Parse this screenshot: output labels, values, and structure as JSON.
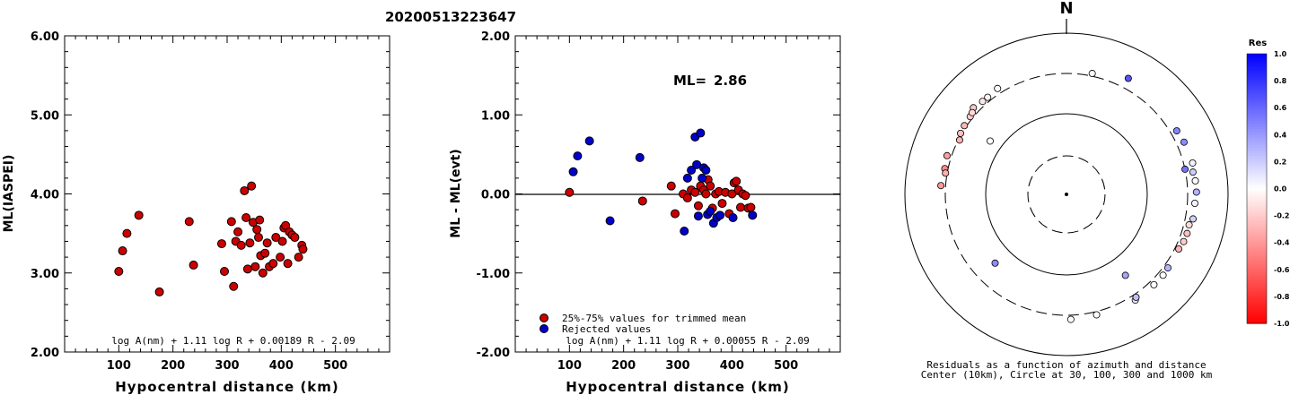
{
  "title": "20200513223647",
  "chart_data": [
    {
      "type": "scatter",
      "id": "ml-vs-distance",
      "xlabel": "Hypocentral distance (km)",
      "ylabel": "ML(IASPEI)",
      "xlim": [
        0,
        600
      ],
      "ylim": [
        2.0,
        6.0
      ],
      "xticks": [
        100,
        200,
        300,
        400,
        500
      ],
      "yticks": [
        "2.00",
        "3.00",
        "4.00",
        "5.00",
        "6.00"
      ],
      "formula": "log A(nm) + 1.11 log R + 0.00189 R - 2.09",
      "point_color": "#cc0000",
      "points": [
        [
          100,
          3.02
        ],
        [
          107,
          3.28
        ],
        [
          115,
          3.5
        ],
        [
          137,
          3.73
        ],
        [
          175,
          2.76
        ],
        [
          230,
          3.65
        ],
        [
          238,
          3.1
        ],
        [
          290,
          3.37
        ],
        [
          295,
          3.02
        ],
        [
          308,
          3.65
        ],
        [
          312,
          2.83
        ],
        [
          316,
          3.4
        ],
        [
          320,
          3.52
        ],
        [
          326,
          3.35
        ],
        [
          332,
          4.04
        ],
        [
          335,
          3.7
        ],
        [
          338,
          3.05
        ],
        [
          342,
          3.38
        ],
        [
          345,
          4.1
        ],
        [
          348,
          3.64
        ],
        [
          352,
          3.08
        ],
        [
          355,
          3.55
        ],
        [
          358,
          3.45
        ],
        [
          360,
          3.67
        ],
        [
          362,
          3.22
        ],
        [
          366,
          3.0
        ],
        [
          370,
          3.25
        ],
        [
          374,
          3.38
        ],
        [
          378,
          3.08
        ],
        [
          385,
          3.12
        ],
        [
          390,
          3.45
        ],
        [
          398,
          3.2
        ],
        [
          402,
          3.4
        ],
        [
          405,
          3.57
        ],
        [
          408,
          3.6
        ],
        [
          412,
          3.12
        ],
        [
          415,
          3.52
        ],
        [
          420,
          3.48
        ],
        [
          425,
          3.45
        ],
        [
          432,
          3.2
        ],
        [
          438,
          3.35
        ],
        [
          440,
          3.3
        ]
      ]
    },
    {
      "type": "scatter",
      "id": "residual-vs-distance",
      "xlabel": "Hypocentral distance (km)",
      "ylabel": "ML - ML(evt)",
      "xlim": [
        0,
        600
      ],
      "ylim": [
        -2.0,
        2.0
      ],
      "xticks": [
        100,
        200,
        300,
        400,
        500
      ],
      "yticks": [
        "-2.00",
        "-1.00",
        "0.00",
        "1.00",
        "2.00"
      ],
      "ml_label": "ML=",
      "ml_value": "2.86",
      "formula": "log A(nm) + 1.11 log R + 0.00055 R - 2.09",
      "legend": [
        {
          "label": "25%-75% values for trimmed mean",
          "color": "#cc0000"
        },
        {
          "label": "Rejected values",
          "color": "#0000cc"
        }
      ],
      "series": [
        {
          "name": "25%-75% values for trimmed mean",
          "color": "#cc0000",
          "points": [
            [
              100,
              0.02
            ],
            [
              235,
              -0.09
            ],
            [
              288,
              0.1
            ],
            [
              295,
              -0.25
            ],
            [
              310,
              0.0
            ],
            [
              318,
              -0.05
            ],
            [
              325,
              0.05
            ],
            [
              332,
              0.02
            ],
            [
              338,
              -0.15
            ],
            [
              342,
              0.1
            ],
            [
              348,
              0.05
            ],
            [
              352,
              0.0
            ],
            [
              356,
              0.18
            ],
            [
              360,
              0.1
            ],
            [
              364,
              -0.18
            ],
            [
              370,
              0.0
            ],
            [
              376,
              0.03
            ],
            [
              382,
              -0.12
            ],
            [
              388,
              0.02
            ],
            [
              395,
              -0.25
            ],
            [
              400,
              0.0
            ],
            [
              404,
              0.14
            ],
            [
              408,
              0.16
            ],
            [
              412,
              0.05
            ],
            [
              416,
              -0.17
            ],
            [
              420,
              0.0
            ],
            [
              425,
              -0.02
            ],
            [
              430,
              -0.18
            ],
            [
              435,
              -0.17
            ]
          ]
        },
        {
          "name": "Rejected values",
          "color": "#0000cc",
          "points": [
            [
              107,
              0.28
            ],
            [
              115,
              0.48
            ],
            [
              137,
              0.67
            ],
            [
              175,
              -0.34
            ],
            [
              230,
              0.46
            ],
            [
              312,
              -0.47
            ],
            [
              318,
              0.2
            ],
            [
              325,
              0.3
            ],
            [
              332,
              0.72
            ],
            [
              335,
              0.37
            ],
            [
              338,
              -0.28
            ],
            [
              342,
              0.77
            ],
            [
              345,
              0.2
            ],
            [
              348,
              0.33
            ],
            [
              352,
              0.3
            ],
            [
              355,
              -0.26
            ],
            [
              360,
              -0.22
            ],
            [
              366,
              -0.37
            ],
            [
              372,
              -0.3
            ],
            [
              378,
              -0.27
            ],
            [
              402,
              -0.3
            ],
            [
              438,
              -0.27
            ]
          ]
        }
      ]
    },
    {
      "type": "scatter",
      "id": "azimuth-distance-residuals",
      "north_label": "N",
      "caption_line1": "Residuals as a function of azimuth and distance",
      "caption_line2": "Center (10km), Circle at 30, 100, 300 and 1000 km",
      "colorbar_title": "Res",
      "colorbar_ticks": [
        "1.0",
        "0.8",
        "0.6",
        "0.4",
        "0.2",
        "0.0",
        "-0.2",
        "-0.4",
        "-0.6",
        "-0.8",
        "-1.0"
      ],
      "stations": [
        {
          "azimuth": 297,
          "distance": 290,
          "residual": -0.3
        },
        {
          "azimuth": 300,
          "distance": 310,
          "residual": -0.25
        },
        {
          "azimuth": 304,
          "distance": 318,
          "residual": -0.28
        },
        {
          "azimuth": 309,
          "distance": 325,
          "residual": -0.2
        },
        {
          "azimuth": 313,
          "distance": 360,
          "residual": -0.22
        },
        {
          "azimuth": 311,
          "distance": 335,
          "residual": -0.15
        },
        {
          "azimuth": 318,
          "distance": 340,
          "residual": -0.1
        },
        {
          "azimuth": 321,
          "distance": 338,
          "residual": -0.05
        },
        {
          "azimuth": 327,
          "distance": 352,
          "residual": -0.02
        },
        {
          "azimuth": 282,
          "distance": 330,
          "residual": -0.45
        },
        {
          "azimuth": 280,
          "distance": 315,
          "residual": -0.32
        },
        {
          "azimuth": 288,
          "distance": 342,
          "residual": -0.38
        },
        {
          "azimuth": 274,
          "distance": 345,
          "residual": -0.4
        },
        {
          "azimuth": 305,
          "distance": 140,
          "residual": 0.0
        },
        {
          "azimuth": 12,
          "distance": 325,
          "residual": 0.02
        },
        {
          "azimuth": 28,
          "distance": 410,
          "residual": 0.67
        },
        {
          "azimuth": 60,
          "distance": 360,
          "residual": 0.48
        },
        {
          "azimuth": 66,
          "distance": 375,
          "residual": 0.46
        },
        {
          "azimuth": 76,
          "distance": 390,
          "residual": 0.05
        },
        {
          "azimuth": 80,
          "distance": 372,
          "residual": 0.2
        },
        {
          "azimuth": 84,
          "distance": 385,
          "residual": 0.0
        },
        {
          "azimuth": 89,
          "distance": 390,
          "residual": 0.3
        },
        {
          "azimuth": 94,
          "distance": 375,
          "residual": 0.05
        },
        {
          "azimuth": 101,
          "distance": 378,
          "residual": 0.18
        },
        {
          "azimuth": 78,
          "distance": 300,
          "residual": 0.55
        },
        {
          "azimuth": 104,
          "distance": 350,
          "residual": -0.15
        },
        {
          "azimuth": 108,
          "distance": 355,
          "residual": -0.25
        },
        {
          "azimuth": 112,
          "distance": 350,
          "residual": -0.2
        },
        {
          "azimuth": 116,
          "distance": 335,
          "residual": -0.3
        },
        {
          "azimuth": 126,
          "distance": 340,
          "residual": 0.3
        },
        {
          "azimuth": 130,
          "distance": 347,
          "residual": 0.0
        },
        {
          "azimuth": 136,
          "distance": 345,
          "residual": 0.0
        },
        {
          "azimuth": 144,
          "distance": 170,
          "residual": 0.35
        },
        {
          "azimuth": 147,
          "distance": 350,
          "residual": 0.1
        },
        {
          "azimuth": 146,
          "distance": 330,
          "residual": 0.25
        },
        {
          "azimuth": 166,
          "distance": 330,
          "residual": 0.0
        },
        {
          "azimuth": 178,
          "distance": 340,
          "residual": 0.0
        },
        {
          "azimuth": 226,
          "distance": 165,
          "residual": 0.45
        }
      ]
    }
  ]
}
